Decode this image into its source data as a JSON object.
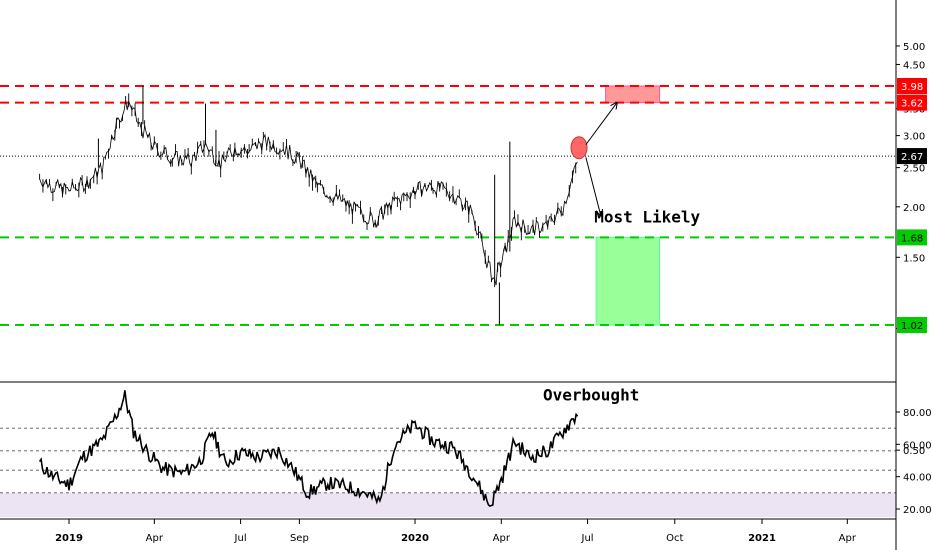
{
  "chart_data": [
    {
      "type": "candlestick",
      "panel": "price",
      "y_scale": "log",
      "ylim": [
        0.45,
        5.0
      ],
      "y_ticks": [
        "5.00",
        "4.50",
        "3.50",
        "3.00",
        "2.50",
        "2.00",
        "1.50",
        "1.00",
        "0.50"
      ],
      "x_ticks": [
        "2019",
        "Apr",
        "Jul",
        "Sep",
        "2020",
        "Apr",
        "Jul",
        "Oct",
        "2021",
        "Apr"
      ],
      "x_tick_dates": [
        "2019-01-01",
        "2019-04-01",
        "2019-07-01",
        "2019-09-01",
        "2020-01-01",
        "2020-04-01",
        "2020-07-01",
        "2020-10-01",
        "2021-01-01",
        "2021-04-01"
      ],
      "last_price": {
        "value": 2.67,
        "label": "2.67",
        "color": "#000000"
      },
      "levels": [
        {
          "value": 3.98,
          "label": "3.98",
          "color": "#ff0000",
          "style": "dashed"
        },
        {
          "value": 3.62,
          "label": "3.62",
          "color": "#ff0000",
          "style": "dashed"
        },
        {
          "value": 1.68,
          "label": "1.68",
          "color": "#00cc00",
          "style": "dashed"
        },
        {
          "value": 1.02,
          "label": "1.02",
          "color": "#00cc00",
          "style": "dashed"
        }
      ],
      "zones": [
        {
          "from_date": "2020-07-20",
          "to_date": "2020-09-15",
          "low": 3.62,
          "high": 3.98,
          "color": "#ff9999"
        },
        {
          "from_date": "2020-07-10",
          "to_date": "2020-09-15",
          "low": 1.02,
          "high": 1.68,
          "color": "#99ff99"
        }
      ],
      "marker": {
        "date": "2020-06-22",
        "value": 2.8,
        "color": "#ff6666"
      },
      "arrows": [
        {
          "from": [
            "2020-06-25",
            2.85
          ],
          "to": [
            "2020-08-01",
            3.62
          ]
        },
        {
          "from": [
            "2020-06-25",
            2.65
          ],
          "to": [
            "2020-07-15",
            1.9
          ]
        }
      ],
      "annotation": {
        "text": "Most Likely",
        "date": "2020-07-08",
        "value": 1.83
      },
      "series": [
        {
          "type": "close_path",
          "points": [
            [
              "2018-12-01",
              2.35
            ],
            [
              "2018-12-15",
              2.25
            ],
            [
              "2019-01-01",
              2.2
            ],
            [
              "2019-01-20",
              2.3
            ],
            [
              "2019-02-05",
              2.5
            ],
            [
              "2019-02-20",
              3.2
            ],
            [
              "2019-03-05",
              3.65
            ],
            [
              "2019-03-15",
              3.2
            ],
            [
              "2019-04-01",
              2.8
            ],
            [
              "2019-04-20",
              2.65
            ],
            [
              "2019-05-10",
              2.6
            ],
            [
              "2019-05-25",
              2.85
            ],
            [
              "2019-06-10",
              2.55
            ],
            [
              "2019-06-25",
              2.8
            ],
            [
              "2019-07-10",
              2.75
            ],
            [
              "2019-07-25",
              2.9
            ],
            [
              "2019-08-15",
              2.8
            ],
            [
              "2019-09-01",
              2.6
            ],
            [
              "2019-09-20",
              2.25
            ],
            [
              "2019-10-10",
              2.1
            ],
            [
              "2019-11-01",
              1.95
            ],
            [
              "2019-11-20",
              1.85
            ],
            [
              "2019-12-10",
              2.05
            ],
            [
              "2020-01-01",
              2.2
            ],
            [
              "2020-01-20",
              2.25
            ],
            [
              "2020-02-10",
              2.15
            ],
            [
              "2020-03-01",
              1.95
            ],
            [
              "2020-03-15",
              1.5
            ],
            [
              "2020-03-25",
              1.3
            ],
            [
              "2020-04-05",
              1.55
            ],
            [
              "2020-04-15",
              1.85
            ],
            [
              "2020-05-01",
              1.75
            ],
            [
              "2020-05-20",
              1.8
            ],
            [
              "2020-06-05",
              2.0
            ],
            [
              "2020-06-15",
              2.35
            ],
            [
              "2020-06-22",
              2.67
            ]
          ]
        },
        {
          "type": "wicks",
          "points": [
            [
              "2019-02-01",
              2.95
            ],
            [
              "2019-03-20",
              3.98
            ],
            [
              "2019-05-25",
              3.6
            ],
            [
              "2019-06-05",
              3.1
            ],
            [
              "2020-04-10",
              2.9
            ],
            [
              "2020-03-30",
              1.02
            ],
            [
              "2020-03-25",
              2.4
            ]
          ]
        }
      ]
    },
    {
      "type": "line",
      "panel": "oscillator",
      "ylim": [
        15,
        95
      ],
      "y_ticks": [
        "80.00",
        "60.00",
        "40.00",
        "20.00"
      ],
      "reference_lines": [
        70,
        56,
        44,
        30
      ],
      "annotation": {
        "text": "Overbought",
        "date": "2020-05-15",
        "value": 87
      },
      "series": [
        {
          "points": [
            [
              "2018-12-01",
              48
            ],
            [
              "2018-12-15",
              40
            ],
            [
              "2019-01-01",
              35
            ],
            [
              "2019-01-15",
              52
            ],
            [
              "2019-02-05",
              62
            ],
            [
              "2019-02-20",
              78
            ],
            [
              "2019-03-01",
              90
            ],
            [
              "2019-03-10",
              68
            ],
            [
              "2019-03-25",
              55
            ],
            [
              "2019-04-10",
              45
            ],
            [
              "2019-05-01",
              42
            ],
            [
              "2019-05-20",
              50
            ],
            [
              "2019-06-01",
              68
            ],
            [
              "2019-06-15",
              48
            ],
            [
              "2019-07-01",
              55
            ],
            [
              "2019-07-20",
              52
            ],
            [
              "2019-08-10",
              56
            ],
            [
              "2019-08-25",
              45
            ],
            [
              "2019-09-10",
              30
            ],
            [
              "2019-10-01",
              36
            ],
            [
              "2019-10-20",
              34
            ],
            [
              "2019-11-10",
              30
            ],
            [
              "2019-11-25",
              24
            ],
            [
              "2019-12-10",
              60
            ],
            [
              "2020-01-01",
              72
            ],
            [
              "2020-01-20",
              62
            ],
            [
              "2020-02-10",
              58
            ],
            [
              "2020-03-01",
              42
            ],
            [
              "2020-03-20",
              22
            ],
            [
              "2020-04-01",
              38
            ],
            [
              "2020-04-15",
              62
            ],
            [
              "2020-05-01",
              52
            ],
            [
              "2020-05-20",
              56
            ],
            [
              "2020-06-05",
              68
            ],
            [
              "2020-06-22",
              80
            ]
          ]
        }
      ]
    }
  ],
  "colors": {
    "axis": "#000000",
    "grid_dash": "#555555",
    "oversold_band": "#ece4f2",
    "series": "#000000"
  }
}
